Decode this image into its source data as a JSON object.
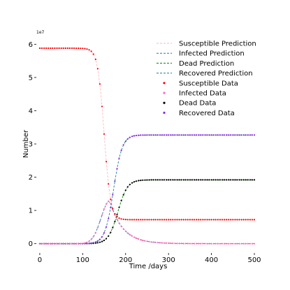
{
  "chart_data": {
    "type": "line",
    "title": "",
    "xlabel": "Time /days",
    "ylabel": "Number",
    "y_multiplier_label": "1e7",
    "xlim": [
      -8,
      513
    ],
    "ylim": [
      -0.28,
      6.28
    ],
    "x_ticks": [
      0,
      100,
      200,
      300,
      400,
      500
    ],
    "x_tick_labels": [
      "0",
      "100",
      "200",
      "300",
      "400",
      "500"
    ],
    "y_ticks": [
      0,
      1,
      2,
      3,
      4,
      5,
      6
    ],
    "y_tick_labels": [
      "0",
      "1",
      "2",
      "3",
      "4",
      "5",
      "6"
    ],
    "grid": false,
    "legend_position": "top-right",
    "model": {
      "x_range": [
        0,
        500
      ],
      "step": 5,
      "susceptible": {
        "initial": 5.88,
        "final": 0.72,
        "midpoint": 150,
        "scale": 7.5
      },
      "recovered": {
        "final": 3.27,
        "midpoint": 172,
        "scale": 10
      },
      "dead": {
        "final": 1.92,
        "midpoint": 182,
        "scale": 11
      },
      "infected": {
        "peak": 1.29,
        "peak_day": 163,
        "rise_width": 20,
        "decay_width": 30
      }
    },
    "series": [
      {
        "name": "Susceptible Prediction",
        "key": "susceptible",
        "kind": "prediction",
        "color": "#ffb6c1"
      },
      {
        "name": "Infected Prediction",
        "key": "infected",
        "kind": "prediction",
        "color": "#1f77b4"
      },
      {
        "name": "Dead Prediction",
        "key": "dead",
        "kind": "prediction",
        "color": "#008000"
      },
      {
        "name": "Recovered Prediction",
        "key": "recovered",
        "kind": "prediction",
        "color": "#1f7aa0"
      },
      {
        "name": "Susceptible Data",
        "key": "susceptible",
        "kind": "data",
        "color": "#ff0000"
      },
      {
        "name": "Infected Data",
        "key": "infected",
        "kind": "data",
        "color": "#ff69b4"
      },
      {
        "name": "Dead Data",
        "key": "dead",
        "kind": "data",
        "color": "#000000"
      },
      {
        "name": "Recovered Data",
        "key": "recovered",
        "kind": "data",
        "color": "#8a2be2"
      }
    ]
  }
}
